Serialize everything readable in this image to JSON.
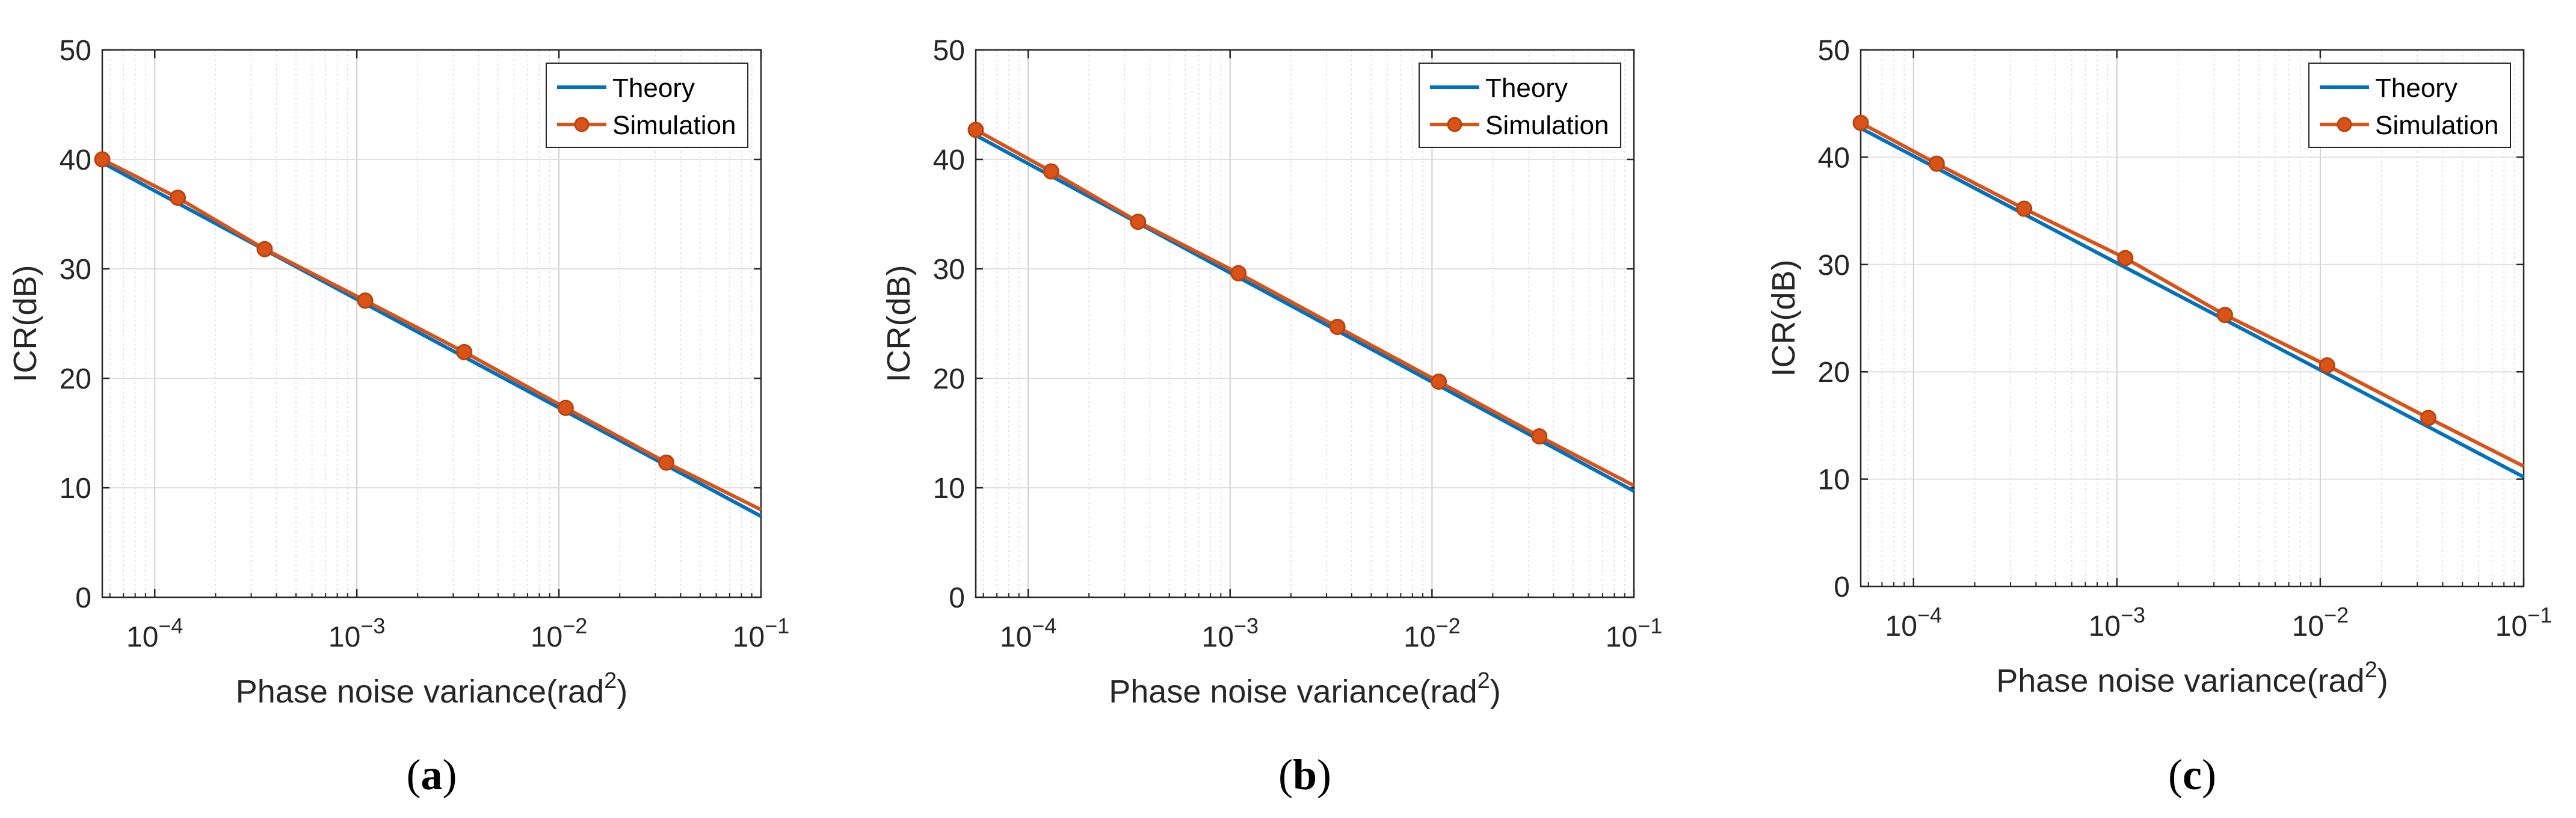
{
  "colors": {
    "theory": "#0072BD",
    "simulation": "#D95319",
    "axis": "#262626",
    "grid": "#d9d9d9"
  },
  "x_tick_labels": [
    {
      "base": "10",
      "exp": "−4"
    },
    {
      "base": "10",
      "exp": "−3"
    },
    {
      "base": "10",
      "exp": "−2"
    },
    {
      "base": "10",
      "exp": "−1"
    }
  ],
  "chart_data": [
    {
      "type": "line",
      "caption": "(a)",
      "caption_letter": "a",
      "xlabel": "Phase noise variance(rad",
      "xlabel_sup": "2",
      "xlabel_close": ")",
      "ylabel": "ICR(dB)",
      "xscale": "log",
      "xlim": [
        5.5e-05,
        0.1
      ],
      "ylim": [
        0,
        50
      ],
      "yticks": [
        0,
        10,
        20,
        30,
        40,
        50
      ],
      "grid": true,
      "legend": "top-right",
      "series": [
        {
          "name": "Theory",
          "x": [
            5.5e-05,
            0.1
          ],
          "y": [
            39.7,
            7.4
          ],
          "markers": false
        },
        {
          "name": "Simulation",
          "x": [
            5.5e-05,
            0.00013,
            0.00035,
            0.0011,
            0.0034,
            0.0108,
            0.034,
            0.1
          ],
          "y": [
            40.0,
            36.5,
            31.8,
            27.1,
            22.4,
            17.3,
            12.3,
            8.0
          ],
          "markers": true,
          "marker_count": 7
        }
      ]
    },
    {
      "type": "line",
      "caption": "(b)",
      "caption_letter": "b",
      "xlabel": "Phase noise variance(rad",
      "xlabel_sup": "2",
      "xlabel_close": ")",
      "ylabel": "ICR(dB)",
      "xscale": "log",
      "xlim": [
        5.5e-05,
        0.1
      ],
      "ylim": [
        0,
        50
      ],
      "yticks": [
        0,
        10,
        20,
        30,
        40,
        50
      ],
      "grid": true,
      "legend": "top-right",
      "series": [
        {
          "name": "Theory",
          "x": [
            5.5e-05,
            0.1
          ],
          "y": [
            42.2,
            9.7
          ],
          "markers": false
        },
        {
          "name": "Simulation",
          "x": [
            5.5e-05,
            0.00013,
            0.00035,
            0.0011,
            0.0034,
            0.0108,
            0.034,
            0.1
          ],
          "y": [
            42.7,
            38.9,
            34.3,
            29.6,
            24.7,
            19.7,
            14.7,
            10.2
          ],
          "markers": true,
          "marker_count": 7
        }
      ]
    },
    {
      "type": "line",
      "caption": "(c)",
      "caption_letter": "c",
      "xlabel": "Phase noise variance(rad",
      "xlabel_sup": "2",
      "xlabel_close": ")",
      "ylabel": "ICR(dB)",
      "xscale": "log",
      "xlim": [
        5.5e-05,
        0.1
      ],
      "ylim": [
        0,
        50
      ],
      "yticks": [
        0,
        10,
        20,
        30,
        40,
        50
      ],
      "grid": true,
      "legend": "top-right",
      "series": [
        {
          "name": "Theory",
          "x": [
            5.5e-05,
            0.1
          ],
          "y": [
            42.7,
            10.2
          ],
          "markers": false
        },
        {
          "name": "Simulation",
          "x": [
            5.5e-05,
            0.00013,
            0.00035,
            0.0011,
            0.0034,
            0.0108,
            0.034,
            0.1
          ],
          "y": [
            43.2,
            39.4,
            35.2,
            30.6,
            25.3,
            20.6,
            15.7,
            11.2
          ],
          "markers": true,
          "marker_count": 7
        }
      ]
    }
  ]
}
